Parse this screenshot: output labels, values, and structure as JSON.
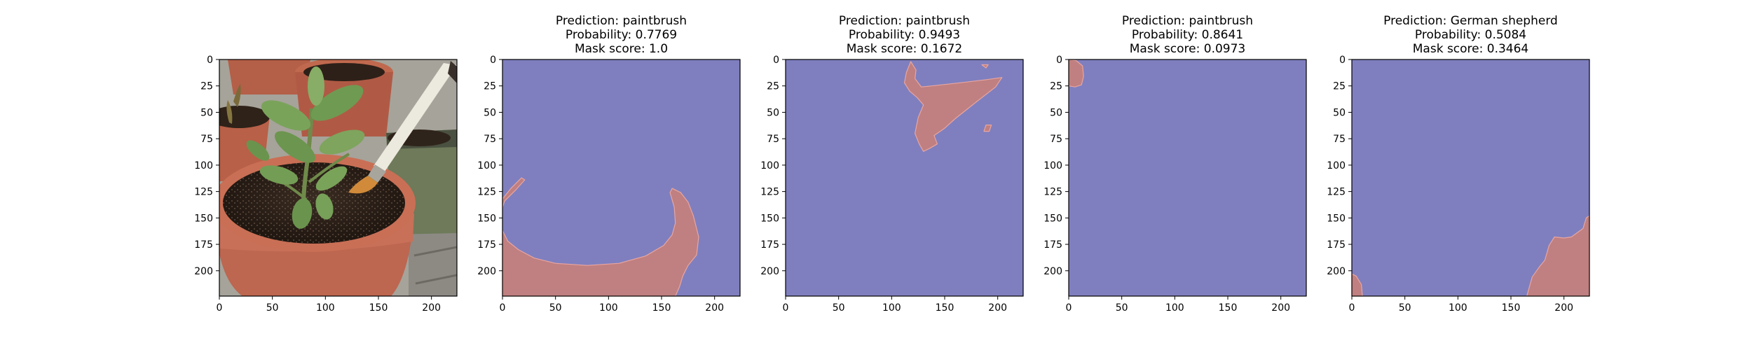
{
  "chart_data": [
    {
      "type": "image",
      "title": [],
      "image_subject": "potted plant with paintbrush",
      "xlim": [
        0,
        224
      ],
      "ylim": [
        224,
        0
      ],
      "xticks": [
        0,
        50,
        100,
        150,
        200
      ],
      "yticks": [
        0,
        25,
        50,
        75,
        100,
        125,
        150,
        175,
        200
      ]
    },
    {
      "type": "mask",
      "title": [
        "Prediction: paintbrush",
        "Probability: 0.7769",
        "Mask score: 1.0"
      ],
      "xlim": [
        0,
        224
      ],
      "ylim": [
        224,
        0
      ],
      "xticks": [
        0,
        50,
        100,
        150,
        200
      ],
      "yticks": [
        0,
        25,
        50,
        75,
        100,
        125,
        150,
        175,
        200
      ],
      "mask_regions": [
        [
          [
            0,
            162
          ],
          [
            5,
            172
          ],
          [
            15,
            180
          ],
          [
            30,
            188
          ],
          [
            50,
            193
          ],
          [
            80,
            195
          ],
          [
            110,
            193
          ],
          [
            135,
            186
          ],
          [
            152,
            176
          ],
          [
            160,
            166
          ],
          [
            163,
            155
          ],
          [
            162,
            140
          ],
          [
            158,
            126
          ],
          [
            160,
            122
          ],
          [
            168,
            126
          ],
          [
            175,
            135
          ],
          [
            180,
            148
          ],
          [
            185,
            168
          ],
          [
            183,
            185
          ],
          [
            175,
            195
          ],
          [
            170,
            205
          ],
          [
            167,
            215
          ],
          [
            163,
            224
          ],
          [
            0,
            224
          ]
        ],
        [
          [
            0,
            132
          ],
          [
            8,
            122
          ],
          [
            18,
            112
          ],
          [
            21,
            114
          ],
          [
            12,
            124
          ],
          [
            2,
            134
          ],
          [
            0,
            140
          ]
        ]
      ]
    },
    {
      "type": "mask",
      "title": [
        "Prediction: paintbrush",
        "Probability: 0.9493",
        "Mask score: 0.1672"
      ],
      "xlim": [
        0,
        224
      ],
      "ylim": [
        224,
        0
      ],
      "xticks": [
        0,
        50,
        100,
        150,
        200
      ],
      "yticks": [
        0,
        25,
        50,
        75,
        100,
        125,
        150,
        175,
        200
      ],
      "mask_regions": [
        [
          [
            118,
            2
          ],
          [
            123,
            10
          ],
          [
            122,
            18
          ],
          [
            128,
            26
          ],
          [
            138,
            25
          ],
          [
            165,
            22
          ],
          [
            190,
            19
          ],
          [
            204,
            17
          ],
          [
            198,
            26
          ],
          [
            180,
            40
          ],
          [
            160,
            56
          ],
          [
            150,
            65
          ],
          [
            140,
            72
          ],
          [
            143,
            80
          ],
          [
            136,
            84
          ],
          [
            130,
            87
          ],
          [
            126,
            80
          ],
          [
            122,
            70
          ],
          [
            125,
            55
          ],
          [
            130,
            43
          ],
          [
            124,
            36
          ],
          [
            117,
            30
          ],
          [
            112,
            22
          ],
          [
            114,
            12
          ]
        ],
        [
          [
            189,
            62
          ],
          [
            194,
            62
          ],
          [
            192,
            68
          ],
          [
            187,
            68
          ]
        ],
        [
          [
            185,
            5
          ],
          [
            191,
            5
          ],
          [
            189,
            8
          ]
        ]
      ]
    },
    {
      "type": "mask",
      "title": [
        "Prediction: paintbrush",
        "Probability: 0.8641",
        "Mask score: 0.0973"
      ],
      "xlim": [
        0,
        224
      ],
      "ylim": [
        224,
        0
      ],
      "xticks": [
        0,
        50,
        100,
        150,
        200
      ],
      "yticks": [
        0,
        25,
        50,
        75,
        100,
        125,
        150,
        175,
        200
      ],
      "mask_regions": [
        [
          [
            0,
            0
          ],
          [
            7,
            1
          ],
          [
            13,
            6
          ],
          [
            14,
            16
          ],
          [
            12,
            24
          ],
          [
            6,
            26
          ],
          [
            0,
            25
          ]
        ]
      ]
    },
    {
      "type": "mask",
      "title": [
        "Prediction: German shepherd",
        "Probability: 0.5084",
        "Mask score: 0.3464"
      ],
      "xlim": [
        0,
        224
      ],
      "ylim": [
        224,
        0
      ],
      "xticks": [
        0,
        50,
        100,
        150,
        200
      ],
      "yticks": [
        0,
        25,
        50,
        75,
        100,
        125,
        150,
        175,
        200
      ],
      "mask_regions": [
        [
          [
            165,
            224
          ],
          [
            170,
            206
          ],
          [
            177,
            196
          ],
          [
            182,
            190
          ],
          [
            186,
            176
          ],
          [
            191,
            168
          ],
          [
            200,
            169
          ],
          [
            207,
            168
          ],
          [
            218,
            160
          ],
          [
            221,
            150
          ],
          [
            224,
            148
          ],
          [
            224,
            224
          ]
        ],
        [
          [
            0,
            203
          ],
          [
            4,
            205
          ],
          [
            9,
            213
          ],
          [
            10,
            224
          ],
          [
            0,
            224
          ]
        ]
      ]
    }
  ],
  "colors": {
    "mask_background": "#7f7fbf",
    "mask_foreground": "#c07f80",
    "mask_highlight": "#e8a6a0"
  }
}
